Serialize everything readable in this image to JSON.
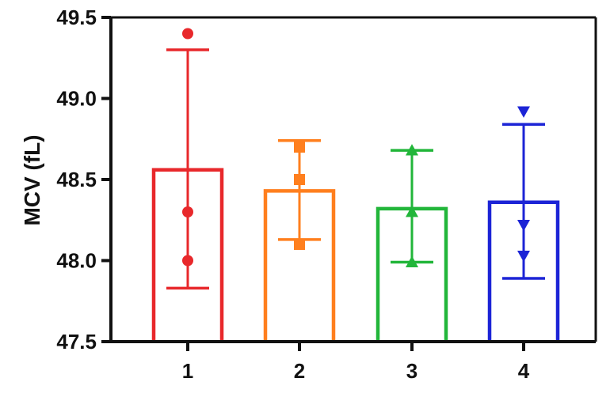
{
  "chart_data": {
    "type": "bar",
    "title": "",
    "xlabel": "",
    "ylabel": "MCV (fL)",
    "ylim": [
      47.5,
      49.5
    ],
    "yticks": [
      "47.5",
      "48.0",
      "48.5",
      "49.0",
      "49.5"
    ],
    "categories": [
      "1",
      "2",
      "3",
      "4"
    ],
    "grid": false,
    "series": [
      {
        "category": "1",
        "mean": 48.56,
        "err_low": 47.83,
        "err_high": 49.3,
        "points": [
          49.4,
          48.3,
          48.0
        ],
        "marker": "circle",
        "color": "#e8282b"
      },
      {
        "category": "2",
        "mean": 48.43,
        "err_low": 48.13,
        "err_high": 48.74,
        "points": [
          48.7,
          48.5,
          48.1
        ],
        "marker": "square",
        "color": "#ff7f1e"
      },
      {
        "category": "3",
        "mean": 48.32,
        "err_low": 47.99,
        "err_high": 48.68,
        "points": [
          48.68,
          48.3,
          47.99
        ],
        "marker": "triangle-up",
        "color": "#22b63a"
      },
      {
        "category": "4",
        "mean": 48.36,
        "err_low": 47.89,
        "err_high": 48.84,
        "points": [
          48.92,
          48.22,
          48.03
        ],
        "marker": "triangle-down",
        "color": "#1c24d6"
      }
    ],
    "axis_color": "#111111"
  }
}
